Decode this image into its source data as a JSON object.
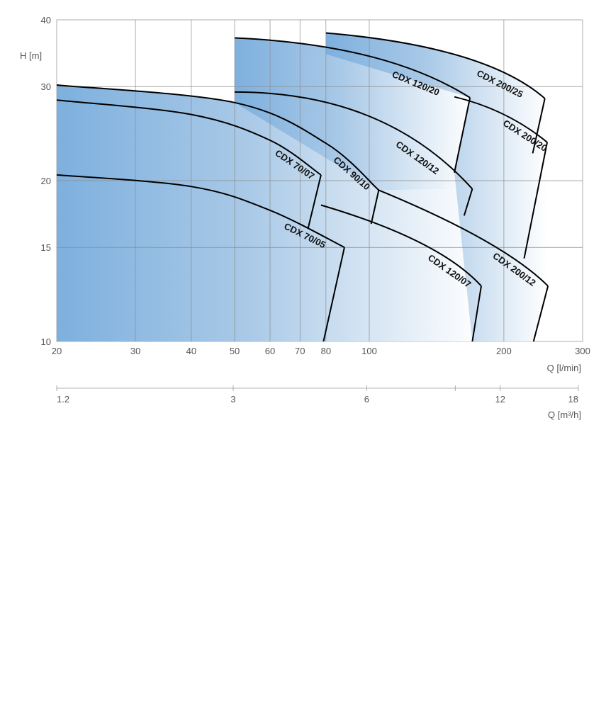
{
  "chart_data": [
    {
      "type": "area",
      "title": "",
      "xlabel": "Q [l/min]",
      "ylabel": "H [m]",
      "x_scale": "log",
      "y_scale": "log",
      "xlim": [
        20,
        300
      ],
      "ylim": [
        10,
        40
      ],
      "x_ticks": [
        20,
        30,
        40,
        50,
        60,
        70,
        80,
        100,
        200,
        300
      ],
      "y_ticks": [
        10,
        15,
        20,
        30,
        40
      ],
      "grid": true,
      "fill": "gradient from #7eb0de (left) to #ffffff (right)",
      "series": [
        {
          "name": "CDX 70/05",
          "points": [
            [
              20,
              20.5
            ],
            [
              40,
              19.5
            ],
            [
              60,
              17.6
            ],
            [
              88,
              15.0
            ]
          ],
          "end_line": [
            [
              88,
              15.0
            ],
            [
              79,
              10.0
            ]
          ]
        },
        {
          "name": "CDX 70/07",
          "points": [
            [
              20,
              28.3
            ],
            [
              40,
              26.6
            ],
            [
              60,
              23.8
            ],
            [
              78,
              20.5
            ]
          ],
          "end_line": [
            [
              78,
              20.5
            ],
            [
              73,
              16.3
            ]
          ]
        },
        {
          "name": "CDX 90/10",
          "points": [
            [
              20,
              30.2
            ],
            [
              50,
              28.0
            ],
            [
              80,
              23.5
            ],
            [
              105,
              19.2
            ]
          ],
          "end_line": [
            [
              105,
              19.2
            ],
            [
              101,
              16.6
            ]
          ]
        },
        {
          "name": "CDX 120/20",
          "points": [
            [
              50,
              37.0
            ],
            [
              100,
              34.2
            ],
            [
              168,
              28.6
            ]
          ],
          "end_line": [
            [
              168,
              28.6
            ],
            [
              155,
              20.7
            ]
          ]
        },
        {
          "name": "CDX 120/12",
          "points": [
            [
              50,
              29.3
            ],
            [
              100,
              26.4
            ],
            [
              170,
              19.3
            ]
          ],
          "end_line": [
            [
              170,
              19.3
            ],
            [
              163,
              17.2
            ]
          ]
        },
        {
          "name": "CDX 120/07",
          "points": [
            [
              78,
              18.0
            ],
            [
              130,
              15.3
            ],
            [
              178,
              12.7
            ]
          ],
          "end_line": [
            [
              178,
              12.7
            ],
            [
              170,
              10.0
            ]
          ]
        },
        {
          "name": "CDX 200/25",
          "points": [
            [
              80,
              37.8
            ],
            [
              160,
              34.2
            ],
            [
              247,
              28.5
            ]
          ],
          "end_line": [
            [
              247,
              28.5
            ],
            [
              232,
              22.5
            ]
          ]
        },
        {
          "name": "CDX 200/20",
          "points": [
            [
              155,
              28.7
            ],
            [
              200,
              26.6
            ],
            [
              250,
              23.6
            ]
          ],
          "end_line": [
            [
              250,
              23.6
            ],
            [
              222,
              14.3
            ]
          ]
        },
        {
          "name": "CDX 200/12",
          "points": [
            [
              105,
              19.2
            ],
            [
              180,
              15.5
            ],
            [
              251,
              12.7
            ]
          ],
          "end_line": [
            [
              251,
              12.7
            ],
            [
              233,
              10.0
            ]
          ]
        }
      ]
    },
    {
      "type": "axis",
      "xlabel": "Q [m³/h]",
      "x_scale": "log",
      "xlim": [
        1.2,
        18
      ],
      "x_ticks": [
        1.2,
        3,
        6,
        12,
        18
      ]
    }
  ]
}
